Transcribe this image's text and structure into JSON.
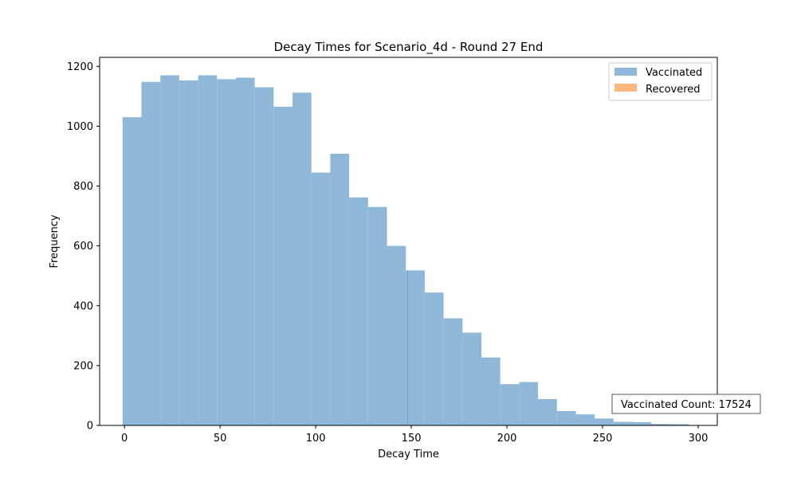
{
  "chart_data": {
    "type": "bar",
    "title": "Decay Times for Scenario_4d - Round 27 End",
    "xlabel": "Decay Time",
    "ylabel": "Frequency",
    "xlim": [
      -13,
      310
    ],
    "ylim": [
      0,
      1230
    ],
    "xticks": [
      0,
      50,
      100,
      150,
      200,
      250,
      300
    ],
    "yticks": [
      0,
      200,
      400,
      600,
      800,
      1000,
      1200
    ],
    "bin_width": 9.875,
    "legend_position": "top-right",
    "series": [
      {
        "name": "Vaccinated",
        "color": "#8fb8d8",
        "bin_edges": [
          -1,
          8.875,
          18.75,
          28.625,
          38.5,
          48.375,
          58.25,
          68.125,
          78.0,
          87.875,
          97.75,
          107.625,
          117.5,
          127.375,
          137.25,
          147.125,
          157.0,
          166.875,
          176.75,
          186.625,
          196.5,
          206.375,
          216.25,
          226.125,
          236.0,
          245.875,
          255.75,
          265.625,
          275.5,
          285.375,
          295.25
        ],
        "values": [
          1030,
          1148,
          1170,
          1153,
          1170,
          1157,
          1162,
          1130,
          1065,
          1112,
          845,
          908,
          762,
          730,
          600,
          518,
          444,
          358,
          310,
          227,
          138,
          145,
          88,
          48,
          37,
          23,
          12,
          11,
          5,
          4
        ]
      },
      {
        "name": "Recovered",
        "color": "#fdb97d",
        "bin_edges": [
          148,
          148.2
        ],
        "values": [
          518
        ]
      }
    ],
    "annotation": {
      "text": "Vaccinated Count: 17524",
      "position": "bottom-right"
    }
  }
}
